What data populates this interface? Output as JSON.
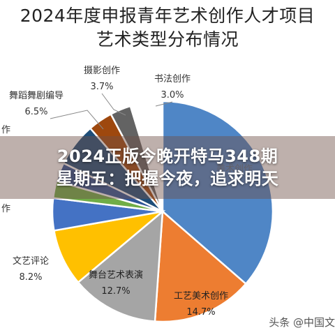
{
  "chart_data": {
    "type": "pie",
    "title_lines": [
      "2024年度申报青年艺术创作人才项目",
      "艺术类型分布情况"
    ],
    "slices": [
      {
        "label": "美术创作",
        "value": 0,
        "color": "#4f86c6",
        "show_label": false
      },
      {
        "label": "工艺美术创作",
        "value": 14.7,
        "display": "14.7%",
        "color": "#ed7d31",
        "show_label": true
      },
      {
        "label": "舞台艺术表演",
        "value": 12.7,
        "display": "12.7%",
        "color": "#a5a5a5",
        "show_label": true
      },
      {
        "label": "文艺评论",
        "value": 8.2,
        "display": "8.2%",
        "color": "#ffc000",
        "show_label": true
      },
      {
        "label": "",
        "value": 0,
        "color": "#4472c4",
        "show_label": false
      },
      {
        "label": "",
        "value": 0,
        "color": "#70ad47",
        "show_label": false
      },
      {
        "label": "",
        "value": 0,
        "color": "#2e5597",
        "show_label": false
      },
      {
        "label": "舞蹈舞剧编导",
        "value": 6.5,
        "display": "6.5%",
        "color": "#1f4e79",
        "show_label": true
      },
      {
        "label": "摄影创作",
        "value": 3.7,
        "display": "3.7%",
        "color": "#9e480e",
        "show_label": true
      },
      {
        "label": "书法创作",
        "value": 3.0,
        "display": "3.0%",
        "color": "#636363",
        "show_label": true
      }
    ],
    "visible_partial_labels": [
      "美术创作",
      "作",
      "作"
    ]
  },
  "overlay": {
    "lines": [
      "2024正版今晚开特马348期",
      "星期五：把握今夜，追求明天"
    ]
  },
  "watermark": {
    "text": "头条 @中国文"
  }
}
